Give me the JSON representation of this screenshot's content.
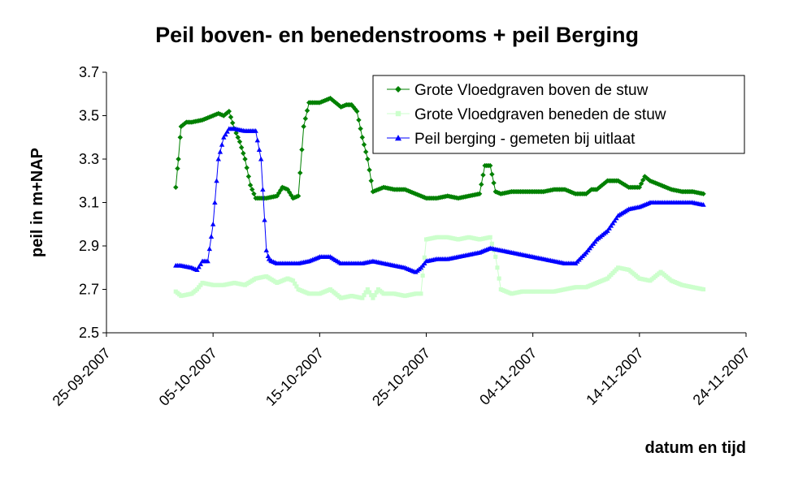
{
  "chart_data": {
    "type": "line",
    "title": "Peil boven- en benedenstrooms + peil Berging",
    "xlabel": "datum en tijd",
    "ylabel": "peil in m+NAP",
    "x_axis_format": "dd-mm-yyyy",
    "xlim": [
      "2007-09-25",
      "2007-11-24"
    ],
    "x_tick_labels": [
      "25-09-2007",
      "05-10-2007",
      "15-10-2007",
      "25-10-2007",
      "04-11-2007",
      "14-11-2007",
      "24-11-2007"
    ],
    "ylim": [
      2.5,
      3.7
    ],
    "y_tick_labels": [
      "2.5",
      "2.7",
      "2.9",
      "3.1",
      "3.3",
      "3.5",
      "3.7"
    ],
    "grid": false,
    "legend_position": "top-right",
    "series": [
      {
        "name": "Grote Vloedgraven boven de stuw",
        "color": "#008000",
        "marker": "diamond",
        "x": [
          "2007-10-01 12:00",
          "2007-10-01 18:00",
          "2007-10-02 00:00",
          "2007-10-02 12:00",
          "2007-10-03 00:00",
          "2007-10-04 00:00",
          "2007-10-05 00:00",
          "2007-10-05 12:00",
          "2007-10-06 00:00",
          "2007-10-06 12:00",
          "2007-10-07 00:00",
          "2007-10-07 12:00",
          "2007-10-08 00:00",
          "2007-10-08 12:00",
          "2007-10-09 00:00",
          "2007-10-10 00:00",
          "2007-10-11 00:00",
          "2007-10-11 12:00",
          "2007-10-12 00:00",
          "2007-10-12 12:00",
          "2007-10-13 00:00",
          "2007-10-13 12:00",
          "2007-10-14 00:00",
          "2007-10-14 12:00",
          "2007-10-15 00:00",
          "2007-10-15 12:00",
          "2007-10-16 00:00",
          "2007-10-17 00:00",
          "2007-10-17 12:00",
          "2007-10-18 00:00",
          "2007-10-18 12:00",
          "2007-10-19 00:00",
          "2007-10-19 12:00",
          "2007-10-20 00:00",
          "2007-10-21 00:00",
          "2007-10-22 00:00",
          "2007-10-23 00:00",
          "2007-10-24 00:00",
          "2007-10-24 12:00",
          "2007-10-25 00:00",
          "2007-10-26 00:00",
          "2007-10-27 00:00",
          "2007-10-28 00:00",
          "2007-10-29 00:00",
          "2007-10-30 00:00",
          "2007-10-30 12:00",
          "2007-10-31 00:00",
          "2007-10-31 12:00",
          "2007-11-01 00:00",
          "2007-11-02 00:00",
          "2007-11-03 00:00",
          "2007-11-04 00:00",
          "2007-11-05 00:00",
          "2007-11-06 00:00",
          "2007-11-07 00:00",
          "2007-11-08 00:00",
          "2007-11-09 00:00",
          "2007-11-09 12:00",
          "2007-11-10 00:00",
          "2007-11-11 00:00",
          "2007-11-12 00:00",
          "2007-11-13 00:00",
          "2007-11-14 00:00",
          "2007-11-14 12:00",
          "2007-11-15 00:00",
          "2007-11-16 00:00",
          "2007-11-17 00:00",
          "2007-11-18 00:00",
          "2007-11-19 00:00",
          "2007-11-20 00:00"
        ],
        "y": [
          3.17,
          3.3,
          3.45,
          3.47,
          3.47,
          3.48,
          3.5,
          3.51,
          3.5,
          3.52,
          3.44,
          3.38,
          3.3,
          3.18,
          3.12,
          3.12,
          3.13,
          3.17,
          3.16,
          3.12,
          3.13,
          3.45,
          3.56,
          3.56,
          3.56,
          3.57,
          3.58,
          3.54,
          3.55,
          3.55,
          3.52,
          3.4,
          3.3,
          3.15,
          3.17,
          3.16,
          3.16,
          3.14,
          3.13,
          3.12,
          3.12,
          3.13,
          3.12,
          3.13,
          3.14,
          3.27,
          3.27,
          3.15,
          3.14,
          3.15,
          3.15,
          3.15,
          3.15,
          3.16,
          3.16,
          3.14,
          3.14,
          3.16,
          3.16,
          3.2,
          3.2,
          3.17,
          3.17,
          3.22,
          3.2,
          3.18,
          3.16,
          3.15,
          3.15,
          3.14
        ]
      },
      {
        "name": "Grote Vloedgraven beneden de stuw",
        "color": "#CCFFCC",
        "marker": "square",
        "x": [
          "2007-10-01 12:00",
          "2007-10-02 00:00",
          "2007-10-03 00:00",
          "2007-10-03 12:00",
          "2007-10-04 00:00",
          "2007-10-05 00:00",
          "2007-10-06 00:00",
          "2007-10-07 00:00",
          "2007-10-08 00:00",
          "2007-10-09 00:00",
          "2007-10-10 00:00",
          "2007-10-11 00:00",
          "2007-10-12 00:00",
          "2007-10-12 12:00",
          "2007-10-13 00:00",
          "2007-10-14 00:00",
          "2007-10-15 00:00",
          "2007-10-16 00:00",
          "2007-10-17 00:00",
          "2007-10-18 00:00",
          "2007-10-19 00:00",
          "2007-10-19 12:00",
          "2007-10-20 00:00",
          "2007-10-20 12:00",
          "2007-10-21 00:00",
          "2007-10-22 00:00",
          "2007-10-23 00:00",
          "2007-10-24 00:00",
          "2007-10-24 12:00",
          "2007-10-25 00:00",
          "2007-10-26 00:00",
          "2007-10-27 00:00",
          "2007-10-28 00:00",
          "2007-10-29 00:00",
          "2007-10-30 00:00",
          "2007-10-31 00:00",
          "2007-10-31 12:00",
          "2007-11-01 00:00",
          "2007-11-02 00:00",
          "2007-11-03 00:00",
          "2007-11-04 00:00",
          "2007-11-05 00:00",
          "2007-11-06 00:00",
          "2007-11-07 00:00",
          "2007-11-08 00:00",
          "2007-11-09 00:00",
          "2007-11-10 00:00",
          "2007-11-11 00:00",
          "2007-11-12 00:00",
          "2007-11-13 00:00",
          "2007-11-14 00:00",
          "2007-11-15 00:00",
          "2007-11-16 00:00",
          "2007-11-17 00:00",
          "2007-11-18 00:00",
          "2007-11-19 00:00",
          "2007-11-20 00:00"
        ],
        "y": [
          2.69,
          2.67,
          2.68,
          2.7,
          2.73,
          2.72,
          2.72,
          2.73,
          2.72,
          2.75,
          2.76,
          2.73,
          2.75,
          2.74,
          2.7,
          2.68,
          2.68,
          2.7,
          2.66,
          2.67,
          2.66,
          2.7,
          2.66,
          2.7,
          2.68,
          2.68,
          2.67,
          2.68,
          2.68,
          2.93,
          2.94,
          2.94,
          2.93,
          2.94,
          2.93,
          2.94,
          2.85,
          2.7,
          2.68,
          2.69,
          2.69,
          2.69,
          2.69,
          2.7,
          2.71,
          2.71,
          2.73,
          2.75,
          2.8,
          2.79,
          2.75,
          2.74,
          2.78,
          2.74,
          2.72,
          2.71,
          2.7
        ]
      },
      {
        "name": "Peil berging - gemeten bij uitlaat",
        "color": "#0000FF",
        "marker": "triangle",
        "x": [
          "2007-10-01 12:00",
          "2007-10-02 00:00",
          "2007-10-03 00:00",
          "2007-10-03 12:00",
          "2007-10-04 00:00",
          "2007-10-04 12:00",
          "2007-10-05 00:00",
          "2007-10-05 12:00",
          "2007-10-06 00:00",
          "2007-10-06 12:00",
          "2007-10-07 00:00",
          "2007-10-08 00:00",
          "2007-10-09 00:00",
          "2007-10-09 12:00",
          "2007-10-10 00:00",
          "2007-10-10 06:00",
          "2007-10-10 12:00",
          "2007-10-11 00:00",
          "2007-10-12 00:00",
          "2007-10-13 00:00",
          "2007-10-14 00:00",
          "2007-10-15 00:00",
          "2007-10-16 00:00",
          "2007-10-17 00:00",
          "2007-10-18 00:00",
          "2007-10-19 00:00",
          "2007-10-20 00:00",
          "2007-10-21 00:00",
          "2007-10-22 00:00",
          "2007-10-23 00:00",
          "2007-10-24 00:00",
          "2007-10-24 12:00",
          "2007-10-25 00:00",
          "2007-10-26 00:00",
          "2007-10-27 00:00",
          "2007-10-28 00:00",
          "2007-10-29 00:00",
          "2007-10-30 00:00",
          "2007-10-31 00:00",
          "2007-11-01 00:00",
          "2007-11-02 00:00",
          "2007-11-03 00:00",
          "2007-11-04 00:00",
          "2007-11-05 00:00",
          "2007-11-06 00:00",
          "2007-11-07 00:00",
          "2007-11-08 00:00",
          "2007-11-09 00:00",
          "2007-11-10 00:00",
          "2007-11-11 00:00",
          "2007-11-12 00:00",
          "2007-11-13 00:00",
          "2007-11-14 00:00",
          "2007-11-15 00:00",
          "2007-11-16 00:00",
          "2007-11-17 00:00",
          "2007-11-18 00:00",
          "2007-11-19 00:00",
          "2007-11-20 00:00"
        ],
        "y": [
          2.81,
          2.81,
          2.8,
          2.79,
          2.83,
          2.83,
          3.0,
          3.3,
          3.4,
          3.44,
          3.44,
          3.43,
          3.43,
          3.3,
          2.88,
          2.84,
          2.83,
          2.82,
          2.82,
          2.82,
          2.83,
          2.85,
          2.85,
          2.82,
          2.82,
          2.82,
          2.83,
          2.82,
          2.81,
          2.8,
          2.78,
          2.8,
          2.83,
          2.84,
          2.84,
          2.85,
          2.86,
          2.87,
          2.89,
          2.88,
          2.87,
          2.86,
          2.85,
          2.84,
          2.83,
          2.82,
          2.82,
          2.87,
          2.93,
          2.97,
          3.04,
          3.07,
          3.08,
          3.1,
          3.1,
          3.1,
          3.1,
          3.1,
          3.09
        ]
      }
    ]
  }
}
